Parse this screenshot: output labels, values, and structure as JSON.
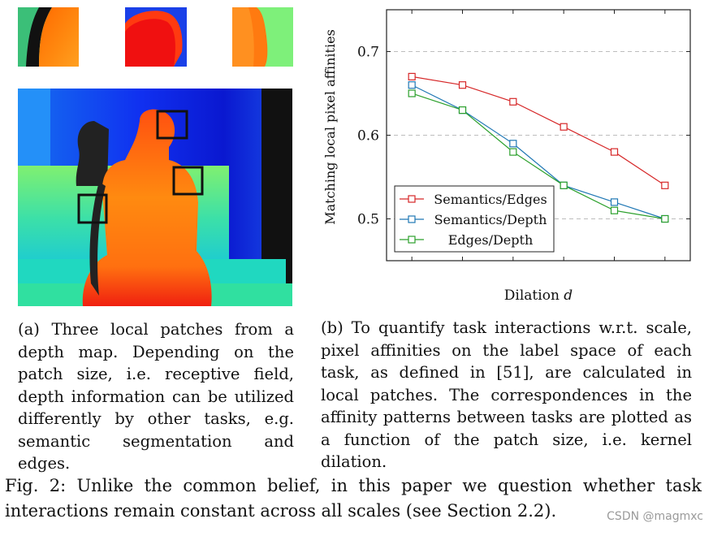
{
  "caption_a": "(a) Three local patches from a depth map. Depending on the patch size, i.e. receptive field, depth information can be utilized differently by other tasks, e.g. semantic segmentation and edges.",
  "caption_b": "(b) To quantify task interactions w.r.t. scale, pixel affinities on the label space of each task, as defined in [51], are calculated in local patches. The correspondences in the affinity patterns between tasks are plotted as a function of the patch size, i.e. kernel dilation.",
  "figure_caption": "Fig. 2: Unlike the common belief, in this paper we question whether task interactions remain constant across all scales (see Section 2.2).",
  "watermark": "CSDN @magmxc",
  "chart_data": {
    "type": "line",
    "xlabel": "Dilation d",
    "ylabel": "Matching local pixel affinities",
    "ylim": [
      0.45,
      0.75
    ],
    "xlim": [
      0.5,
      6.5
    ],
    "yticks": [
      0.5,
      0.6,
      0.7
    ],
    "ytick_labels": [
      "0.5",
      "0.6",
      "0.7"
    ],
    "x": [
      1,
      2,
      3,
      4,
      5,
      6
    ],
    "grid": "horizontal dashed",
    "legend_position": "bottom-left",
    "series": [
      {
        "name": "Semantics/Edges",
        "color": "#d62728",
        "values": [
          0.67,
          0.66,
          0.64,
          0.61,
          0.58,
          0.54
        ]
      },
      {
        "name": "Semantics/Depth",
        "color": "#1f77b4",
        "values": [
          0.66,
          0.63,
          0.59,
          0.54,
          0.52,
          0.5
        ]
      },
      {
        "name": "Edges/Depth",
        "color": "#2ca02c",
        "values": [
          0.65,
          0.63,
          0.58,
          0.54,
          0.51,
          0.5
        ]
      }
    ]
  }
}
